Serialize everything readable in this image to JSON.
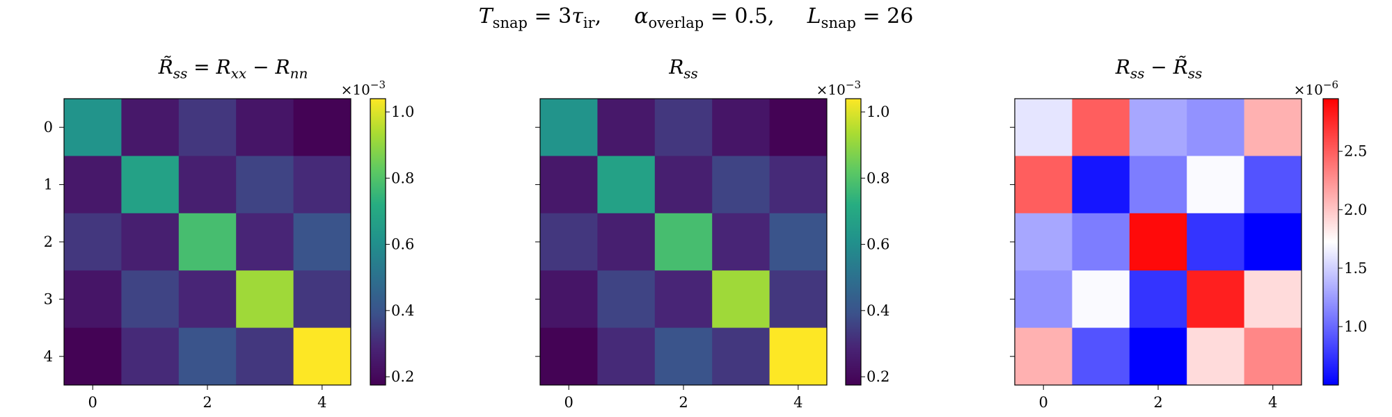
{
  "figure": {
    "suptitle": {
      "t_var": "T",
      "t_sub": "snap",
      "t_eq": "= 3",
      "tau": "τ",
      "tau_sub": "ir",
      "alpha": "α",
      "alpha_sub": "overlap",
      "alpha_eq": "= 0.5,",
      "l_var": "L",
      "l_sub": "snap",
      "l_eq": "= 26",
      "sep": ","
    },
    "panel_titles": [
      {
        "a": "R̃",
        "a_sub": "ss",
        "eq": " = ",
        "b": "R",
        "b_sub": "xx",
        "op": " − ",
        "c": "R",
        "c_sub": "nn"
      },
      {
        "a": "R",
        "a_sub": "ss"
      },
      {
        "a": "R",
        "a_sub": "ss",
        "op": " − ",
        "b": "R̃",
        "b_sub": "ss"
      }
    ]
  },
  "chart_data": [
    {
      "type": "heatmap",
      "colormap": "viridis",
      "x_ticks": [
        "0",
        "2",
        "4"
      ],
      "y_ticks": [
        "0",
        "1",
        "2",
        "3",
        "4"
      ],
      "values_x1e-3": [
        [
          0.62,
          0.25,
          0.33,
          0.24,
          0.18
        ],
        [
          0.25,
          0.67,
          0.27,
          0.36,
          0.3
        ],
        [
          0.33,
          0.27,
          0.78,
          0.29,
          0.4
        ],
        [
          0.24,
          0.36,
          0.29,
          0.92,
          0.33
        ],
        [
          0.18,
          0.3,
          0.4,
          0.33,
          1.04
        ]
      ],
      "colorbar": {
        "min": 0.175,
        "max": 1.04,
        "ticks": [
          "0.2",
          "0.4",
          "0.6",
          "0.8",
          "1.0"
        ],
        "tick_values": [
          0.2,
          0.4,
          0.6,
          0.8,
          1.0
        ],
        "multiplier": "×10",
        "exponent": "−3"
      }
    },
    {
      "type": "heatmap",
      "colormap": "viridis",
      "x_ticks": [
        "0",
        "2",
        "4"
      ],
      "y_ticks": [],
      "values_x1e-3": [
        [
          0.62,
          0.25,
          0.33,
          0.24,
          0.18
        ],
        [
          0.25,
          0.67,
          0.27,
          0.36,
          0.3
        ],
        [
          0.33,
          0.27,
          0.78,
          0.29,
          0.4
        ],
        [
          0.24,
          0.36,
          0.29,
          0.92,
          0.33
        ],
        [
          0.18,
          0.3,
          0.4,
          0.33,
          1.04
        ]
      ],
      "colorbar": {
        "min": 0.175,
        "max": 1.04,
        "ticks": [
          "0.2",
          "0.4",
          "0.6",
          "0.8",
          "1.0"
        ],
        "tick_values": [
          0.2,
          0.4,
          0.6,
          0.8,
          1.0
        ],
        "multiplier": "×10",
        "exponent": "−3"
      }
    },
    {
      "type": "heatmap",
      "colormap": "bwr",
      "x_ticks": [
        "0",
        "2",
        "4"
      ],
      "y_ticks": [],
      "values_x1e-6": [
        [
          1.6,
          2.5,
          1.3,
          1.2,
          2.1
        ],
        [
          2.5,
          0.6,
          1.1,
          1.7,
          0.9
        ],
        [
          1.3,
          1.1,
          2.9,
          0.75,
          0.5
        ],
        [
          1.2,
          1.7,
          0.75,
          2.8,
          1.9
        ],
        [
          2.1,
          0.9,
          0.5,
          1.9,
          2.3
        ]
      ],
      "colorbar": {
        "min": 0.5,
        "max": 2.95,
        "ticks": [
          "1.0",
          "1.5",
          "2.0",
          "2.5"
        ],
        "tick_values": [
          1.0,
          1.5,
          2.0,
          2.5
        ],
        "multiplier": "×10",
        "exponent": "−6"
      }
    }
  ]
}
